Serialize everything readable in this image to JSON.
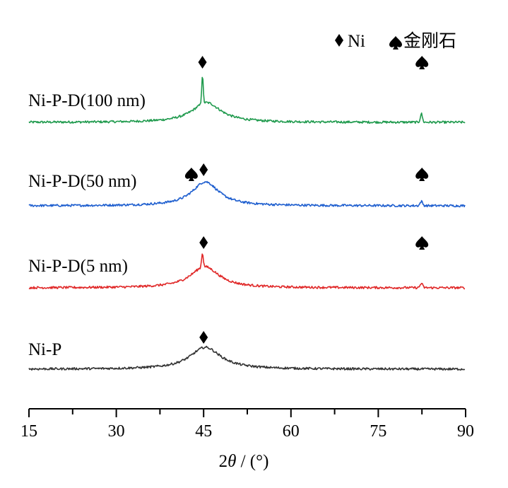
{
  "chart_data": {
    "type": "line",
    "xlabel": "2θ / (°)",
    "xlim": [
      15,
      90
    ],
    "xticks": [
      15,
      30,
      45,
      60,
      75,
      90
    ],
    "ylabel": "",
    "grid": false,
    "legend_position": "top-right",
    "legend": [
      {
        "symbol": "diamond",
        "label": "Ni"
      },
      {
        "symbol": "spade",
        "label": "金刚石"
      }
    ],
    "series": [
      {
        "name": "Ni-P-D(100 nm)",
        "color": "#1f9a4d",
        "baseline": 173,
        "peaks": [
          {
            "x": 45.5,
            "height": 28,
            "width": 3.0,
            "shape": "broad"
          },
          {
            "x": 44.8,
            "height": 40,
            "width": 0.18,
            "shape": "sharp"
          },
          {
            "x": 82.4,
            "height": 12,
            "width": 0.25,
            "shape": "sharp"
          }
        ],
        "markers": [
          {
            "symbol": "diamond",
            "x": 44.8
          },
          {
            "symbol": "spade",
            "x": 82.5
          }
        ]
      },
      {
        "name": "Ni-P-D(50 nm)",
        "color": "#1f5fcf",
        "baseline": 291,
        "peaks": [
          {
            "x": 45.3,
            "height": 34,
            "width": 2.8,
            "shape": "broad"
          },
          {
            "x": 82.4,
            "height": 6,
            "width": 0.3,
            "shape": "sharp"
          }
        ],
        "markers": [
          {
            "symbol": "spade",
            "x": 42.9
          },
          {
            "symbol": "diamond",
            "x": 45.0
          },
          {
            "symbol": "spade",
            "x": 82.5
          }
        ]
      },
      {
        "name": "Ni-P-D(5 nm)",
        "color": "#e02828",
        "baseline": 407,
        "peaks": [
          {
            "x": 45.2,
            "height": 30,
            "width": 3.0,
            "shape": "broad"
          },
          {
            "x": 44.8,
            "height": 20,
            "width": 0.2,
            "shape": "sharp"
          },
          {
            "x": 82.4,
            "height": 6,
            "width": 0.3,
            "shape": "sharp"
          }
        ],
        "markers": [
          {
            "symbol": "diamond",
            "x": 45.0
          },
          {
            "symbol": "spade",
            "x": 82.5
          }
        ]
      },
      {
        "name": "Ni-P",
        "color": "#333333",
        "baseline": 522,
        "peaks": [
          {
            "x": 45.3,
            "height": 31,
            "width": 3.2,
            "shape": "broad"
          }
        ],
        "markers": [
          {
            "symbol": "diamond",
            "x": 45.0
          }
        ]
      }
    ]
  }
}
